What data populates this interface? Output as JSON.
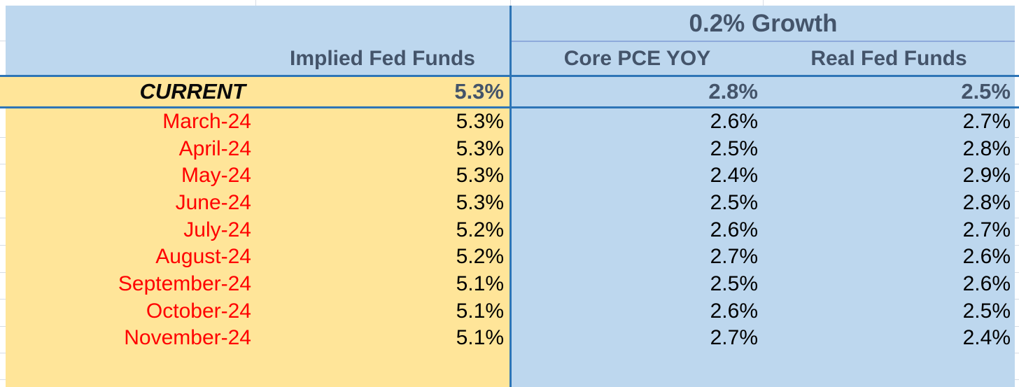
{
  "spreadsheet": {
    "left_section": {
      "header": "Implied Fed Funds",
      "current": {
        "label": "CURRENT",
        "implied_fed_funds": "5.3%"
      }
    },
    "right_section": {
      "group_header": "0.2% Growth",
      "core_pce_header": "Core PCE YOY",
      "real_fed_header": "Real Fed Funds",
      "current": {
        "core_pce_yoy": "2.8%",
        "real_fed_funds": "2.5%"
      }
    },
    "rows": [
      {
        "month": "March-24",
        "implied": "5.3%",
        "core_pce": "2.6%",
        "real_fed": "2.7%"
      },
      {
        "month": "April-24",
        "implied": "5.3%",
        "core_pce": "2.5%",
        "real_fed": "2.8%"
      },
      {
        "month": "May-24",
        "implied": "5.3%",
        "core_pce": "2.4%",
        "real_fed": "2.9%"
      },
      {
        "month": "June-24",
        "implied": "5.3%",
        "core_pce": "2.5%",
        "real_fed": "2.8%"
      },
      {
        "month": "July-24",
        "implied": "5.2%",
        "core_pce": "2.6%",
        "real_fed": "2.7%"
      },
      {
        "month": "August-24",
        "implied": "5.2%",
        "core_pce": "2.7%",
        "real_fed": "2.6%"
      },
      {
        "month": "September-24",
        "implied": "5.1%",
        "core_pce": "2.5%",
        "real_fed": "2.6%"
      },
      {
        "month": "October-24",
        "implied": "5.1%",
        "core_pce": "2.6%",
        "real_fed": "2.5%"
      },
      {
        "month": "November-24",
        "implied": "5.1%",
        "core_pce": "2.7%",
        "real_fed": "2.4%"
      }
    ]
  },
  "colors": {
    "yellow_background": "#FFE599",
    "blue_background": "#BDD7EE",
    "dark_border": "#2E75B6",
    "light_border": "#8EAADB",
    "header_text": "#44546A",
    "month_text": "#FF0000",
    "value_text": "#000000",
    "gridline": "#D6DCE4"
  }
}
